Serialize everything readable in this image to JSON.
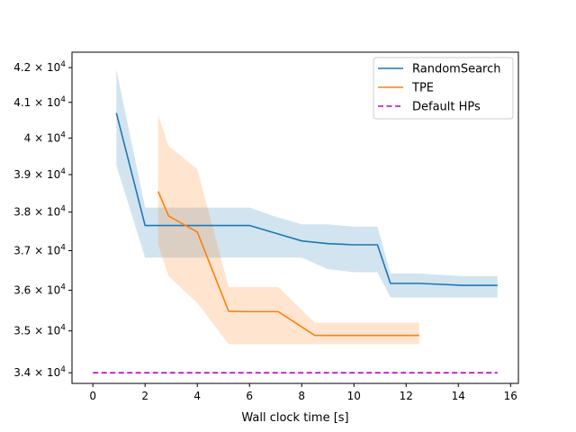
{
  "chart_data": {
    "type": "line",
    "title": "",
    "xlabel": "Wall clock time [s]",
    "ylabel": "",
    "xlim": [
      -0.8,
      16.3
    ],
    "ylim": [
      33750,
      42450
    ],
    "yscale": "log",
    "grid": false,
    "legend_position": "top-right",
    "x_ticks": [
      0,
      2,
      4,
      6,
      8,
      10,
      12,
      14,
      16
    ],
    "y_ticks": [
      {
        "value": 34000,
        "mantissa": "3.4",
        "base": "10",
        "exp": "4"
      },
      {
        "value": 35000,
        "mantissa": "3.5",
        "base": "10",
        "exp": "4"
      },
      {
        "value": 36000,
        "mantissa": "3.6",
        "base": "10",
        "exp": "4"
      },
      {
        "value": 37000,
        "mantissa": "3.7",
        "base": "10",
        "exp": "4"
      },
      {
        "value": 38000,
        "mantissa": "3.8",
        "base": "10",
        "exp": "4"
      },
      {
        "value": 39000,
        "mantissa": "3.9",
        "base": "10",
        "exp": "4"
      },
      {
        "value": 40000,
        "mantissa": "4",
        "base": "10",
        "exp": "4"
      },
      {
        "value": 41000,
        "mantissa": "4.1",
        "base": "10",
        "exp": "4"
      },
      {
        "value": 42000,
        "mantissa": "4.2",
        "base": "10",
        "exp": "4"
      }
    ],
    "series": [
      {
        "name": "RandomSearch",
        "color": "#1f77b4",
        "band_color": "#1f77b4",
        "dash": false,
        "x": [
          0.9,
          2.0,
          3.0,
          4.0,
          5.0,
          6.0,
          7.0,
          8.0,
          9.0,
          10.0,
          10.9,
          11.4,
          12.5,
          14.2,
          15.5
        ],
        "y": [
          40700,
          37650,
          37650,
          37650,
          37650,
          37650,
          37450,
          37250,
          37180,
          37150,
          37150,
          36170,
          36170,
          36120,
          36120
        ],
        "lower": [
          39250,
          36820,
          36820,
          36820,
          36820,
          36820,
          36820,
          36820,
          36530,
          36450,
          36450,
          35820,
          35820,
          35820,
          35820
        ],
        "upper": [
          41950,
          38120,
          38120,
          38120,
          38120,
          38120,
          37880,
          37680,
          37680,
          37620,
          37620,
          36420,
          36420,
          36350,
          36350
        ]
      },
      {
        "name": "TPE",
        "color": "#ff7f0e",
        "band_color": "#ff7f0e",
        "dash": false,
        "x": [
          2.5,
          2.9,
          4.0,
          5.2,
          6.0,
          7.1,
          8.5,
          10.0,
          12.5
        ],
        "y": [
          38550,
          37900,
          37480,
          35480,
          35470,
          35470,
          34890,
          34890,
          34890
        ],
        "lower": [
          37150,
          36350,
          35680,
          34680,
          34680,
          34680,
          34680,
          34680,
          34680
        ],
        "upper": [
          40650,
          39780,
          39150,
          36080,
          36080,
          36080,
          35200,
          35200,
          35200
        ]
      },
      {
        "name": "Default HPs",
        "color": "#c000c0",
        "dash": true,
        "x": [
          0.0,
          15.5
        ],
        "y": [
          34000,
          34000
        ]
      }
    ]
  }
}
